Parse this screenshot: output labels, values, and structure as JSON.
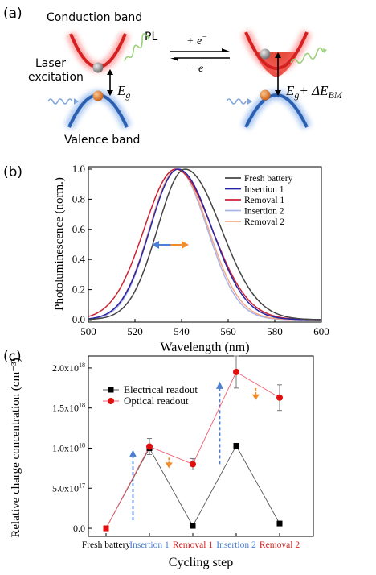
{
  "panel_a": {
    "label": "(a)",
    "conduction_band": "Conduction band",
    "valence_band": "Valence band",
    "laser_line1": "Laser",
    "laser_line2": "excitation",
    "pl": "PL",
    "eg": "E",
    "eg_sub": "g",
    "eg2": "E",
    "eg2_sub": "g",
    "eg2_plus": "+ ΔE",
    "eg2_sub2": "BM",
    "plus_e": "+ e",
    "minus_e": "− e",
    "superscript_minus": "−",
    "colors": {
      "conduction": "#d42020",
      "valence": "#2b5fb0",
      "pl_wave": "#9bd07a",
      "laser_wave": "#7fa6d8"
    }
  },
  "chart_b_label": "(b)",
  "chart_c_label": "(c)",
  "chart_c_exponents": [
    "18",
    "18",
    "18",
    "17"
  ],
  "chart_data": [
    {
      "type": "line",
      "xlabel": "Wavelength (nm)",
      "ylabel": "Photoluminescence (norm.)",
      "xlim": [
        500,
        600
      ],
      "ylim": [
        0,
        1.0
      ],
      "xticks": [
        "500",
        "520",
        "540",
        "560",
        "580",
        "600"
      ],
      "yticks": [
        "0.0",
        "0.2",
        "0.4",
        "0.6",
        "0.8",
        "1.0"
      ],
      "legend_position": "top-right",
      "series": [
        {
          "name": "Fresh battery",
          "color": "#444444",
          "peak": 541.5,
          "sigma_left": 11.8,
          "sigma_right": 15.5
        },
        {
          "name": "Insertion 1",
          "color": "#2424a8",
          "peak": 538.5,
          "sigma_left": 12.0,
          "sigma_right": 14.5
        },
        {
          "name": "Removal 1",
          "color": "#cc2233",
          "peak": 537.5,
          "sigma_left": 13.5,
          "sigma_right": 15.5
        },
        {
          "name": "Insertion 2",
          "color": "#a9b4e6",
          "peak": 538.0,
          "sigma_left": 11.5,
          "sigma_right": 13.0
        },
        {
          "name": "Removal 2",
          "color": "#f2a98a",
          "peak": 538.0,
          "sigma_left": 11.8,
          "sigma_right": 13.5
        }
      ],
      "shift_arrow_colors": [
        "#4a7fd4",
        "#f08a2a"
      ]
    },
    {
      "type": "scatter",
      "xlabel": "Cycling step",
      "ylabel": "Relative charge concentration (cm⁻³)",
      "categories": [
        "Fresh battery",
        "Insertion 1",
        "Removal 1",
        "Insertion 2",
        "Removal 2"
      ],
      "category_colors": [
        "#000000",
        "#4a7fd4",
        "#d42020",
        "#4a7fd4",
        "#d42020"
      ],
      "ylim": [
        -1e+17,
        2.15e+18
      ],
      "yticks": [
        {
          "value": 0,
          "mantissa": "0.0",
          "exp": ""
        },
        {
          "value": 5e+17,
          "mantissa": "5.0x10",
          "exp": "17"
        },
        {
          "value": 1e+18,
          "mantissa": "1.0x10",
          "exp": "18"
        },
        {
          "value": 1.5e+18,
          "mantissa": "1.5x10",
          "exp": "18"
        },
        {
          "value": 2e+18,
          "mantissa": "2.0x10",
          "exp": "18"
        }
      ],
      "legend_position": "top-left",
      "series": [
        {
          "name": "Electrical readout",
          "color": "#000000",
          "marker": "square",
          "values": [
            0.0,
            1e+18,
            3e+16,
            1.03e+18,
            6e+16
          ]
        },
        {
          "name": "Optical readout",
          "color": "#e01010",
          "marker": "circle",
          "values": [
            0.0,
            1.02e+18,
            8e+17,
            1.95e+18,
            1.63e+18
          ],
          "errors": [
            0,
            1e+17,
            7e+16,
            2e+17,
            1.6e+17
          ]
        }
      ],
      "annotations": [
        {
          "type": "up-arrow",
          "color": "#4a7fd4",
          "x_index": 0.62,
          "from": 1e+17,
          "to": 9.8e+17
        },
        {
          "type": "up-arrow",
          "color": "#4a7fd4",
          "x_index": 2.62,
          "from": 8e+17,
          "to": 1.83e+18
        },
        {
          "type": "down-arrow",
          "color": "#f08a2a",
          "x_index": 1.45,
          "from": 8.8e+17,
          "to": 7.5e+17
        },
        {
          "type": "down-arrow",
          "color": "#f08a2a",
          "x_index": 3.45,
          "from": 1.75e+18,
          "to": 1.6e+18
        }
      ]
    }
  ]
}
